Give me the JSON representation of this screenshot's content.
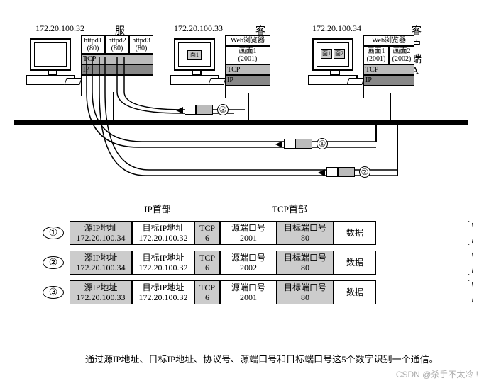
{
  "nodes": {
    "server": {
      "ip": "172.20.100.32",
      "name": "服务器",
      "procs": [
        {
          "name": "httpd1",
          "port": "(80)"
        },
        {
          "name": "httpd2",
          "port": "(80)"
        },
        {
          "name": "httpd3",
          "port": "(80)"
        }
      ],
      "layers": [
        "TCP",
        "IP"
      ]
    },
    "clientB": {
      "ip": "172.20.100.33",
      "name": "客户端B",
      "browser": "Web浏览器",
      "wins": [
        {
          "label": "画面1",
          "port": "(2001)"
        }
      ],
      "screen_wins": [
        "面1"
      ],
      "layers": [
        "TCP",
        "IP"
      ]
    },
    "clientA": {
      "ip": "172.20.100.34",
      "name": "客户端A",
      "browser": "Web浏览器",
      "wins": [
        {
          "label": "画面1",
          "port": "(2001)"
        },
        {
          "label": "画面2",
          "port": "(2002)"
        }
      ],
      "screen_wins": [
        "面1",
        "面2"
      ],
      "layers": [
        "TCP",
        "IP"
      ]
    }
  },
  "headers": {
    "ip": "IP首部",
    "tcp": "TCP首部"
  },
  "cols": {
    "src_ip": "源IP地址",
    "dst_ip": "目标IP地址",
    "proto": "TCP",
    "src_port": "源端口号",
    "dst_port": "目标端口号",
    "data": "数据"
  },
  "packets": [
    {
      "n": "①",
      "src_ip": "172.20.100.34",
      "dst_ip": "172.20.100.32",
      "proto": "6",
      "src_port": "2001",
      "dst_port": "80"
    },
    {
      "n": "②",
      "src_ip": "172.20.100.34",
      "dst_ip": "172.20.100.32",
      "proto": "6",
      "src_port": "2002",
      "dst_port": "80"
    },
    {
      "n": "③",
      "src_ip": "172.20.100.33",
      "dst_ip": "172.20.100.32",
      "proto": "6",
      "src_port": "2001",
      "dst_port": "80"
    }
  ],
  "pkt_labels": [
    "③",
    "①",
    "②"
  ],
  "caption": "通过源IP地址、目标IP地址、协议号、源端口号和目标端口号这5个数字识别一个通信。",
  "watermark": "CSDN @杀手不太冷 !",
  "style": {
    "col_widths": {
      "src_ip": 88,
      "dst_ip": 88,
      "proto": 36,
      "src_port": 80,
      "dst_port": 80,
      "data": 60
    },
    "gray": "#ccc",
    "dark": "#888",
    "hdr_ip_w": 212,
    "hdr_tcp_w": 160
  }
}
